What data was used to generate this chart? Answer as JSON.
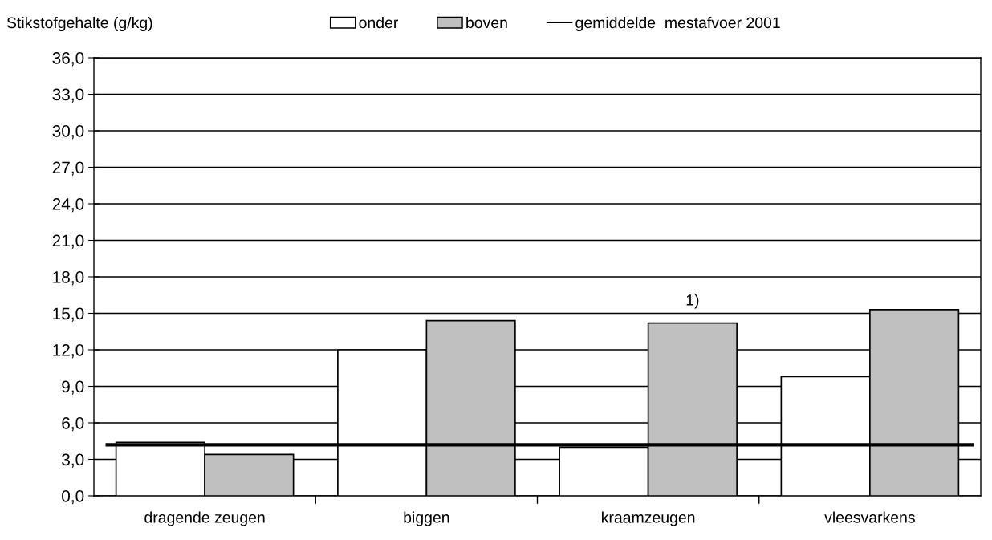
{
  "chart_data": {
    "type": "bar",
    "ylabel": "Stikstofgehalte (g/kg)",
    "categories": [
      "dragende zeugen",
      "biggen",
      "kraamzeugen",
      "vleesvarkens"
    ],
    "series": [
      {
        "name": "onder",
        "color": "#ffffff",
        "values": [
          4.4,
          12.0,
          4.0,
          9.8
        ]
      },
      {
        "name": "boven",
        "color": "#c0c0c0",
        "values": [
          3.4,
          14.4,
          14.2,
          15.3
        ]
      }
    ],
    "ylim": [
      0,
      36
    ],
    "yticks": [
      {
        "value": 0,
        "label": "0,0"
      },
      {
        "value": 3,
        "label": "3,0"
      },
      {
        "value": 6,
        "label": "6,0"
      },
      {
        "value": 9,
        "label": "9,0"
      },
      {
        "value": 12,
        "label": "12,0"
      },
      {
        "value": 15,
        "label": "15,0"
      },
      {
        "value": 18,
        "label": "18,0"
      },
      {
        "value": 21,
        "label": "21,0"
      },
      {
        "value": 24,
        "label": "24,0"
      },
      {
        "value": 27,
        "label": "27,0"
      },
      {
        "value": 30,
        "label": "30,0"
      },
      {
        "value": 33,
        "label": "33,0"
      },
      {
        "value": 36,
        "label": "36,0"
      }
    ],
    "ref_lines": [
      {
        "axis": "y",
        "value": 4.2,
        "label": "gemiddelde  mestafvoer 2001",
        "color": "#000000"
      }
    ],
    "annotations": [
      {
        "text": "1)",
        "x": "kraamzeugen",
        "y": 14.2
      }
    ],
    "grid": "y",
    "legend": "top"
  }
}
